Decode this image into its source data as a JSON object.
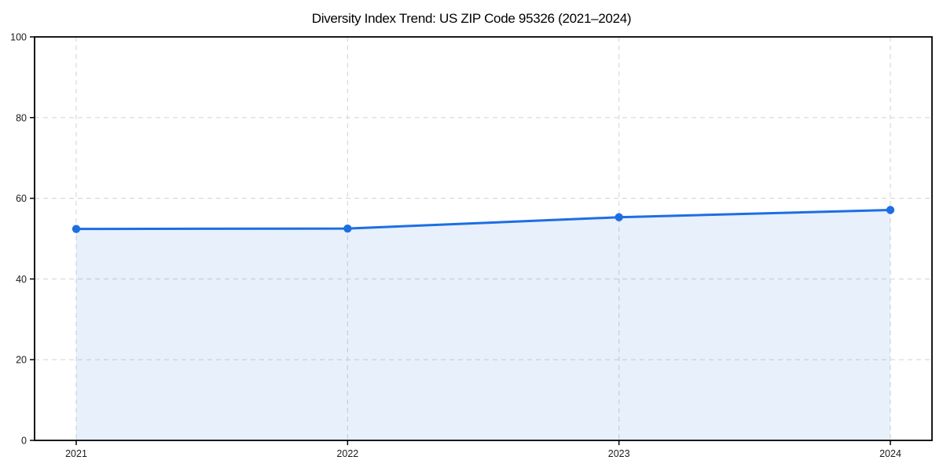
{
  "chart_data": {
    "type": "area",
    "title": "Diversity Index Trend: US ZIP Code 95326 (2021–2024)",
    "categories": [
      "2021",
      "2022",
      "2023",
      "2024"
    ],
    "series": [
      {
        "name": "Diversity Index",
        "values": [
          52.4,
          52.5,
          55.3,
          57.1
        ]
      }
    ],
    "xlabel": "",
    "ylabel": "",
    "ylim": [
      0,
      100
    ],
    "yticks": [
      0,
      20,
      40,
      60,
      80,
      100
    ],
    "grid": true,
    "grid_style": "dashed",
    "legend_position": "none",
    "marker": "circle",
    "colors": {
      "line": "#1d6ee3",
      "fill": "#1d6ee3",
      "fill_opacity": 0.1,
      "grid": "#d9d9d9",
      "frame": "#000000",
      "tick_text": "#1a1a1a",
      "background": "#ffffff"
    }
  }
}
